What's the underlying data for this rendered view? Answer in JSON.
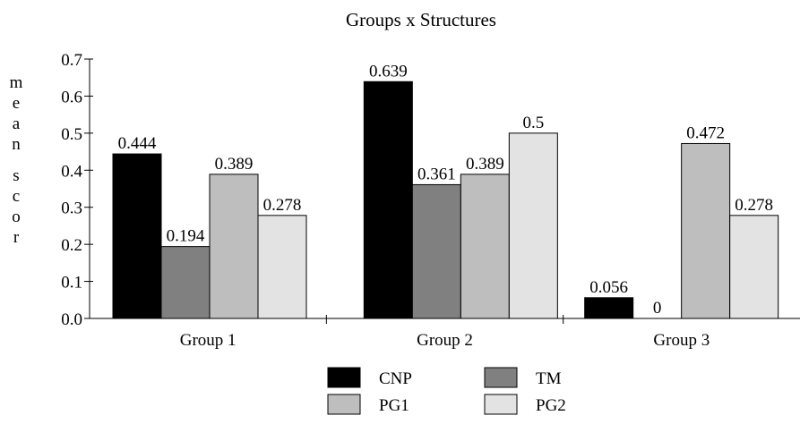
{
  "chart_data": {
    "type": "bar",
    "title": "Groups x Structures",
    "ylabel": "mean scor",
    "xlabel": "",
    "categories": [
      "Group 1",
      "Group 2",
      "Group 3"
    ],
    "ylim": [
      0,
      0.7
    ],
    "yticks": [
      "0.0",
      "0.1",
      "0.2",
      "0.3",
      "0.4",
      "0.5",
      "0.6",
      "0.7"
    ],
    "grid": false,
    "legend_position": "bottom-center",
    "series": [
      {
        "name": "CNP",
        "color": "#000000",
        "values": [
          0.444,
          0.639,
          0.056
        ],
        "labels": [
          "0.444",
          "0.639",
          "0.056"
        ]
      },
      {
        "name": "TM",
        "color": "#808080",
        "values": [
          0.194,
          0.361,
          0
        ],
        "labels": [
          "0.194",
          "0.361",
          "0"
        ]
      },
      {
        "name": "PG1",
        "color": "#bebebe",
        "values": [
          0.389,
          0.389,
          0.472
        ],
        "labels": [
          "0.389",
          "0.389",
          "0.472"
        ]
      },
      {
        "name": "PG2",
        "color": "#e3e3e3",
        "values": [
          0.278,
          0.5,
          0.278
        ],
        "labels": [
          "0.278",
          "0.5",
          "0.278"
        ]
      }
    ]
  }
}
